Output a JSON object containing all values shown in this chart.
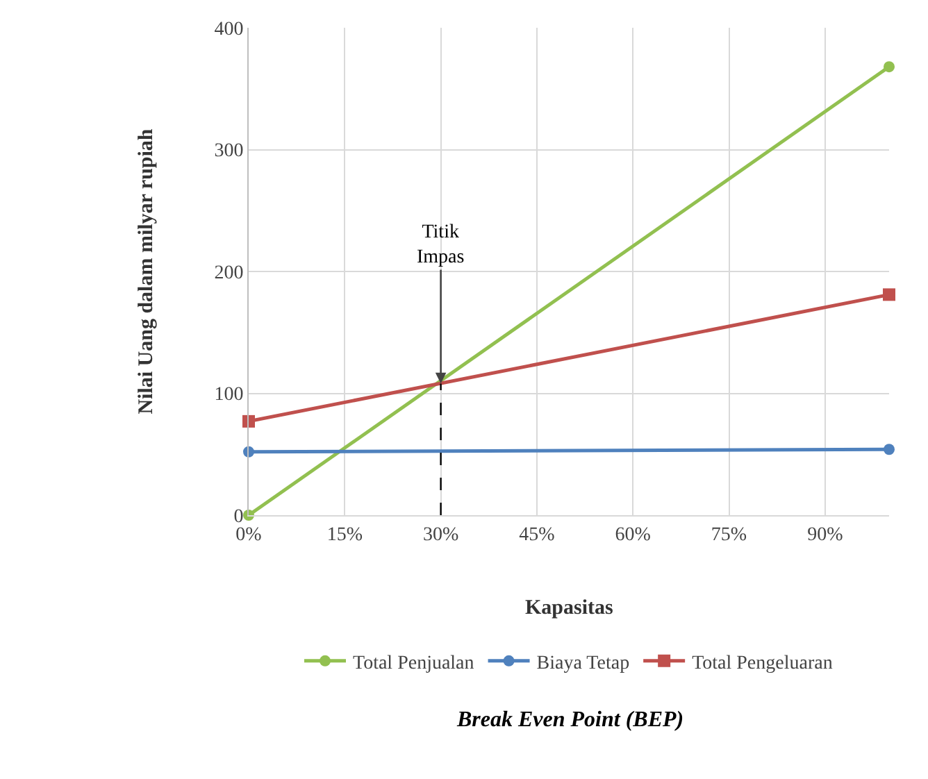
{
  "chart_data": {
    "type": "line",
    "title": "Break Even Point (BEP)",
    "xlabel": "Kapasitas",
    "ylabel": "Nilai Uang dalam milyar rupiah",
    "x": [
      0,
      100
    ],
    "series": [
      {
        "name": "Total Penjualan",
        "color": "#92c050",
        "values": [
          0,
          368
        ],
        "marker": "circle"
      },
      {
        "name": "Biaya Tetap",
        "color": "#4f81bd",
        "values": [
          52,
          54
        ],
        "marker": "circle"
      },
      {
        "name": "Total Pengeluaran",
        "color": "#c0504d",
        "values": [
          77,
          181
        ],
        "marker": "square"
      },
      {
        "type": "line",
        "x": [
          30,
          30
        ],
        "values": [
          0,
          108
        ],
        "color": "#000000",
        "line_style": "dashed",
        "marker": "none"
      }
    ],
    "annotations": [
      {
        "text": "Titik Impas",
        "x": 30,
        "y": 108
      }
    ],
    "xlim": [
      0,
      100
    ],
    "ylim": [
      0,
      400
    ],
    "xticks": [
      {
        "value": 0,
        "label": "0%"
      },
      {
        "value": 15,
        "label": "15%"
      },
      {
        "value": 30,
        "label": "30%"
      },
      {
        "value": 45,
        "label": "45%"
      },
      {
        "value": 60,
        "label": "60%"
      },
      {
        "value": 75,
        "label": "75%"
      },
      {
        "value": 90,
        "label": "90%"
      }
    ],
    "yticks": [
      0,
      100,
      200,
      300,
      400
    ],
    "grid": true,
    "legend": "bottom",
    "line_style": "solid"
  }
}
